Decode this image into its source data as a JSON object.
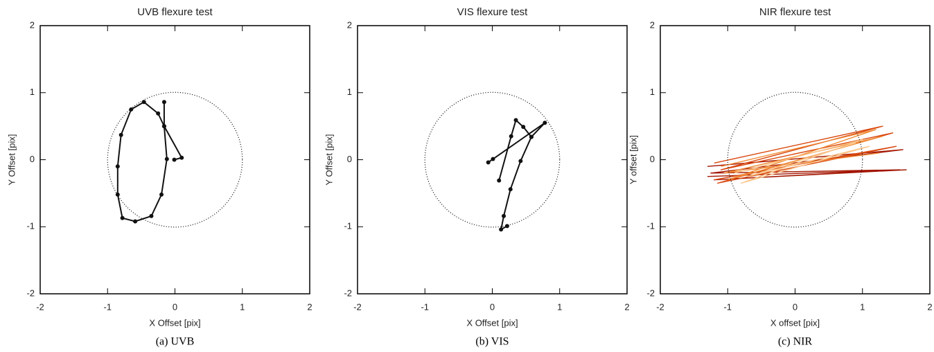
{
  "chart_data": [
    {
      "type": "line",
      "title": "UVB flexure test",
      "xlabel": "X Offset [pix]",
      "ylabel": "Y Offset [pix]",
      "caption": "(a)  UVB",
      "markers": true,
      "xlim": [
        -2,
        2
      ],
      "ylim": [
        -2,
        2
      ],
      "xticks": [
        -2,
        -1,
        0,
        1,
        2
      ],
      "yticks": [
        -2,
        -1,
        0,
        1,
        2
      ],
      "series": [
        {
          "color": "#111111",
          "x": [
            -0.16,
            -0.16,
            -0.12,
            -0.2,
            -0.35,
            -0.59,
            -0.78,
            -0.85,
            -0.85,
            -0.8,
            -0.65,
            -0.46,
            -0.25,
            -0.16,
            0.1,
            -0.01
          ],
          "values": [
            0.86,
            0.5,
            0.01,
            -0.52,
            -0.84,
            -0.92,
            -0.87,
            -0.52,
            -0.1,
            0.37,
            0.75,
            0.86,
            0.69,
            0.5,
            0.03,
            0.0
          ]
        }
      ]
    },
    {
      "type": "line",
      "title": "VIS flexure test",
      "xlabel": "X Offset [pix]",
      "ylabel": "Y Offset [pix]",
      "caption": "(b)  VIS",
      "markers": true,
      "xlim": [
        -2,
        2
      ],
      "ylim": [
        -2,
        2
      ],
      "xticks": [
        -2,
        -1,
        0,
        1,
        2
      ],
      "yticks": [
        -2,
        -1,
        0,
        1,
        2
      ],
      "series": [
        {
          "color": "#111111",
          "x": [
            0.1,
            0.28,
            0.35,
            0.46,
            0.58,
            0.78,
            0.01,
            -0.06,
            null,
            0.58,
            0.42,
            0.27,
            0.17,
            0.13,
            0.22
          ],
          "values": [
            -0.31,
            0.35,
            0.59,
            0.49,
            0.34,
            0.55,
            0.01,
            -0.04,
            null,
            0.34,
            -0.02,
            -0.44,
            -0.84,
            -1.04,
            -0.99
          ]
        }
      ]
    },
    {
      "type": "line",
      "title": "NIR flexure test",
      "xlabel": "X offset [pix]",
      "ylabel": "Y offset [pix]",
      "caption": "(c)  NIR",
      "markers": false,
      "xlim": [
        -2,
        2
      ],
      "ylim": [
        -2,
        2
      ],
      "xticks": [
        -2,
        -1,
        0,
        1,
        2
      ],
      "yticks": [
        -2,
        -1,
        0,
        1,
        2
      ],
      "series": [
        {
          "color": "#a31500",
          "x": [
            -1.3,
            1.6,
            -1.25,
            1.55,
            -1.2,
            1.65,
            -1.3
          ],
          "values": [
            -0.1,
            0.15,
            -0.2,
            -0.15,
            -0.3,
            -0.15,
            -0.25
          ]
        },
        {
          "color": "#d9470d",
          "x": [
            -1.2,
            1.3,
            -1.1,
            1.45,
            -1.15,
            1.5,
            -1.2
          ],
          "values": [
            -0.05,
            0.5,
            -0.15,
            0.4,
            -0.35,
            0.2,
            -0.3
          ]
        },
        {
          "color": "#f08a35",
          "x": [
            -1.1,
            1.2,
            -1.0,
            1.3,
            -1.05,
            1.25
          ],
          "values": [
            -0.1,
            0.45,
            -0.3,
            0.35,
            -0.2,
            0.1
          ]
        },
        {
          "color": "#fbc58a",
          "x": [
            -0.9,
            1.0,
            -0.8,
            1.1,
            -0.7,
            0.9
          ],
          "values": [
            -0.2,
            0.3,
            -0.35,
            0.2,
            -0.25,
            0.25
          ]
        }
      ]
    }
  ]
}
